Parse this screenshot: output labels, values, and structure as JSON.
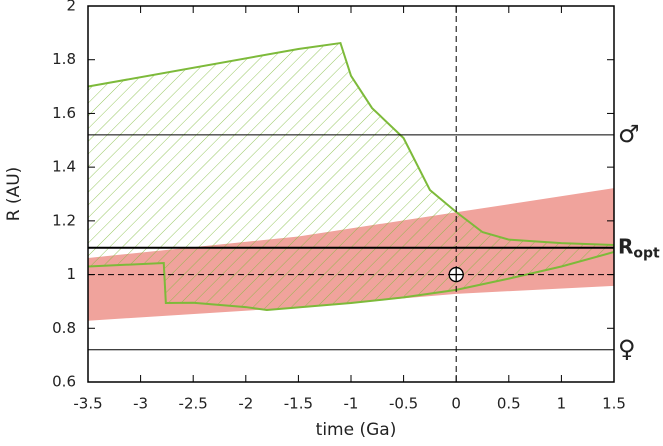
{
  "chart_data": {
    "type": "area",
    "xlabel": "time (Ga)",
    "ylabel": "R (AU)",
    "xlim": [
      -3.5,
      1.5
    ],
    "xticks": [
      -3.5,
      -3,
      -2.5,
      -2,
      -1.5,
      -1,
      -0.5,
      0,
      0.5,
      1,
      1.5
    ],
    "ylim": [
      0.6,
      2
    ],
    "yticks": [
      0.6,
      0.8,
      1,
      1.2,
      1.4,
      1.6,
      1.8,
      2
    ],
    "band": {
      "color": "#f0a39c",
      "x": [
        -3.5,
        -1.5,
        0,
        1.5
      ],
      "lower": [
        0.83,
        0.88,
        0.93,
        0.96
      ],
      "upper": [
        1.06,
        1.14,
        1.23,
        1.32
      ]
    },
    "hatched_region": {
      "color": "#7dba3a",
      "upper": {
        "x": [
          -3.5,
          -1.5,
          -1.1,
          -1.0,
          -0.8,
          -0.5,
          -0.25,
          0,
          0.25,
          0.5,
          1,
          1.5
        ],
        "y": [
          1.7,
          1.84,
          1.862,
          1.74,
          1.62,
          1.508,
          1.315,
          1.233,
          1.158,
          1.13,
          1.117,
          1.11
        ]
      },
      "lower": {
        "x": [
          -3.5,
          -2.78,
          -2.76,
          -2.5,
          -2,
          -1.8,
          -1,
          -0.5,
          0,
          0.5,
          1,
          1.5
        ],
        "y": [
          1.03,
          1.043,
          0.894,
          0.895,
          0.879,
          0.868,
          0.894,
          0.915,
          0.943,
          0.985,
          1.03,
          1.084
        ]
      }
    },
    "reference_lines": [
      {
        "value": 1.52,
        "label": "♂",
        "style": "solid",
        "width": 1
      },
      {
        "value": 0.72,
        "label": "♀",
        "style": "solid",
        "width": 1
      },
      {
        "value": 1.1,
        "label": "R",
        "label_sub": "opt",
        "style": "solid",
        "width": 2
      },
      {
        "value": 1,
        "style": "dashed",
        "width": 1
      }
    ],
    "vertical_line": {
      "value": 0,
      "style": "dashed"
    },
    "earth": {
      "x": 0,
      "y": 1
    }
  }
}
